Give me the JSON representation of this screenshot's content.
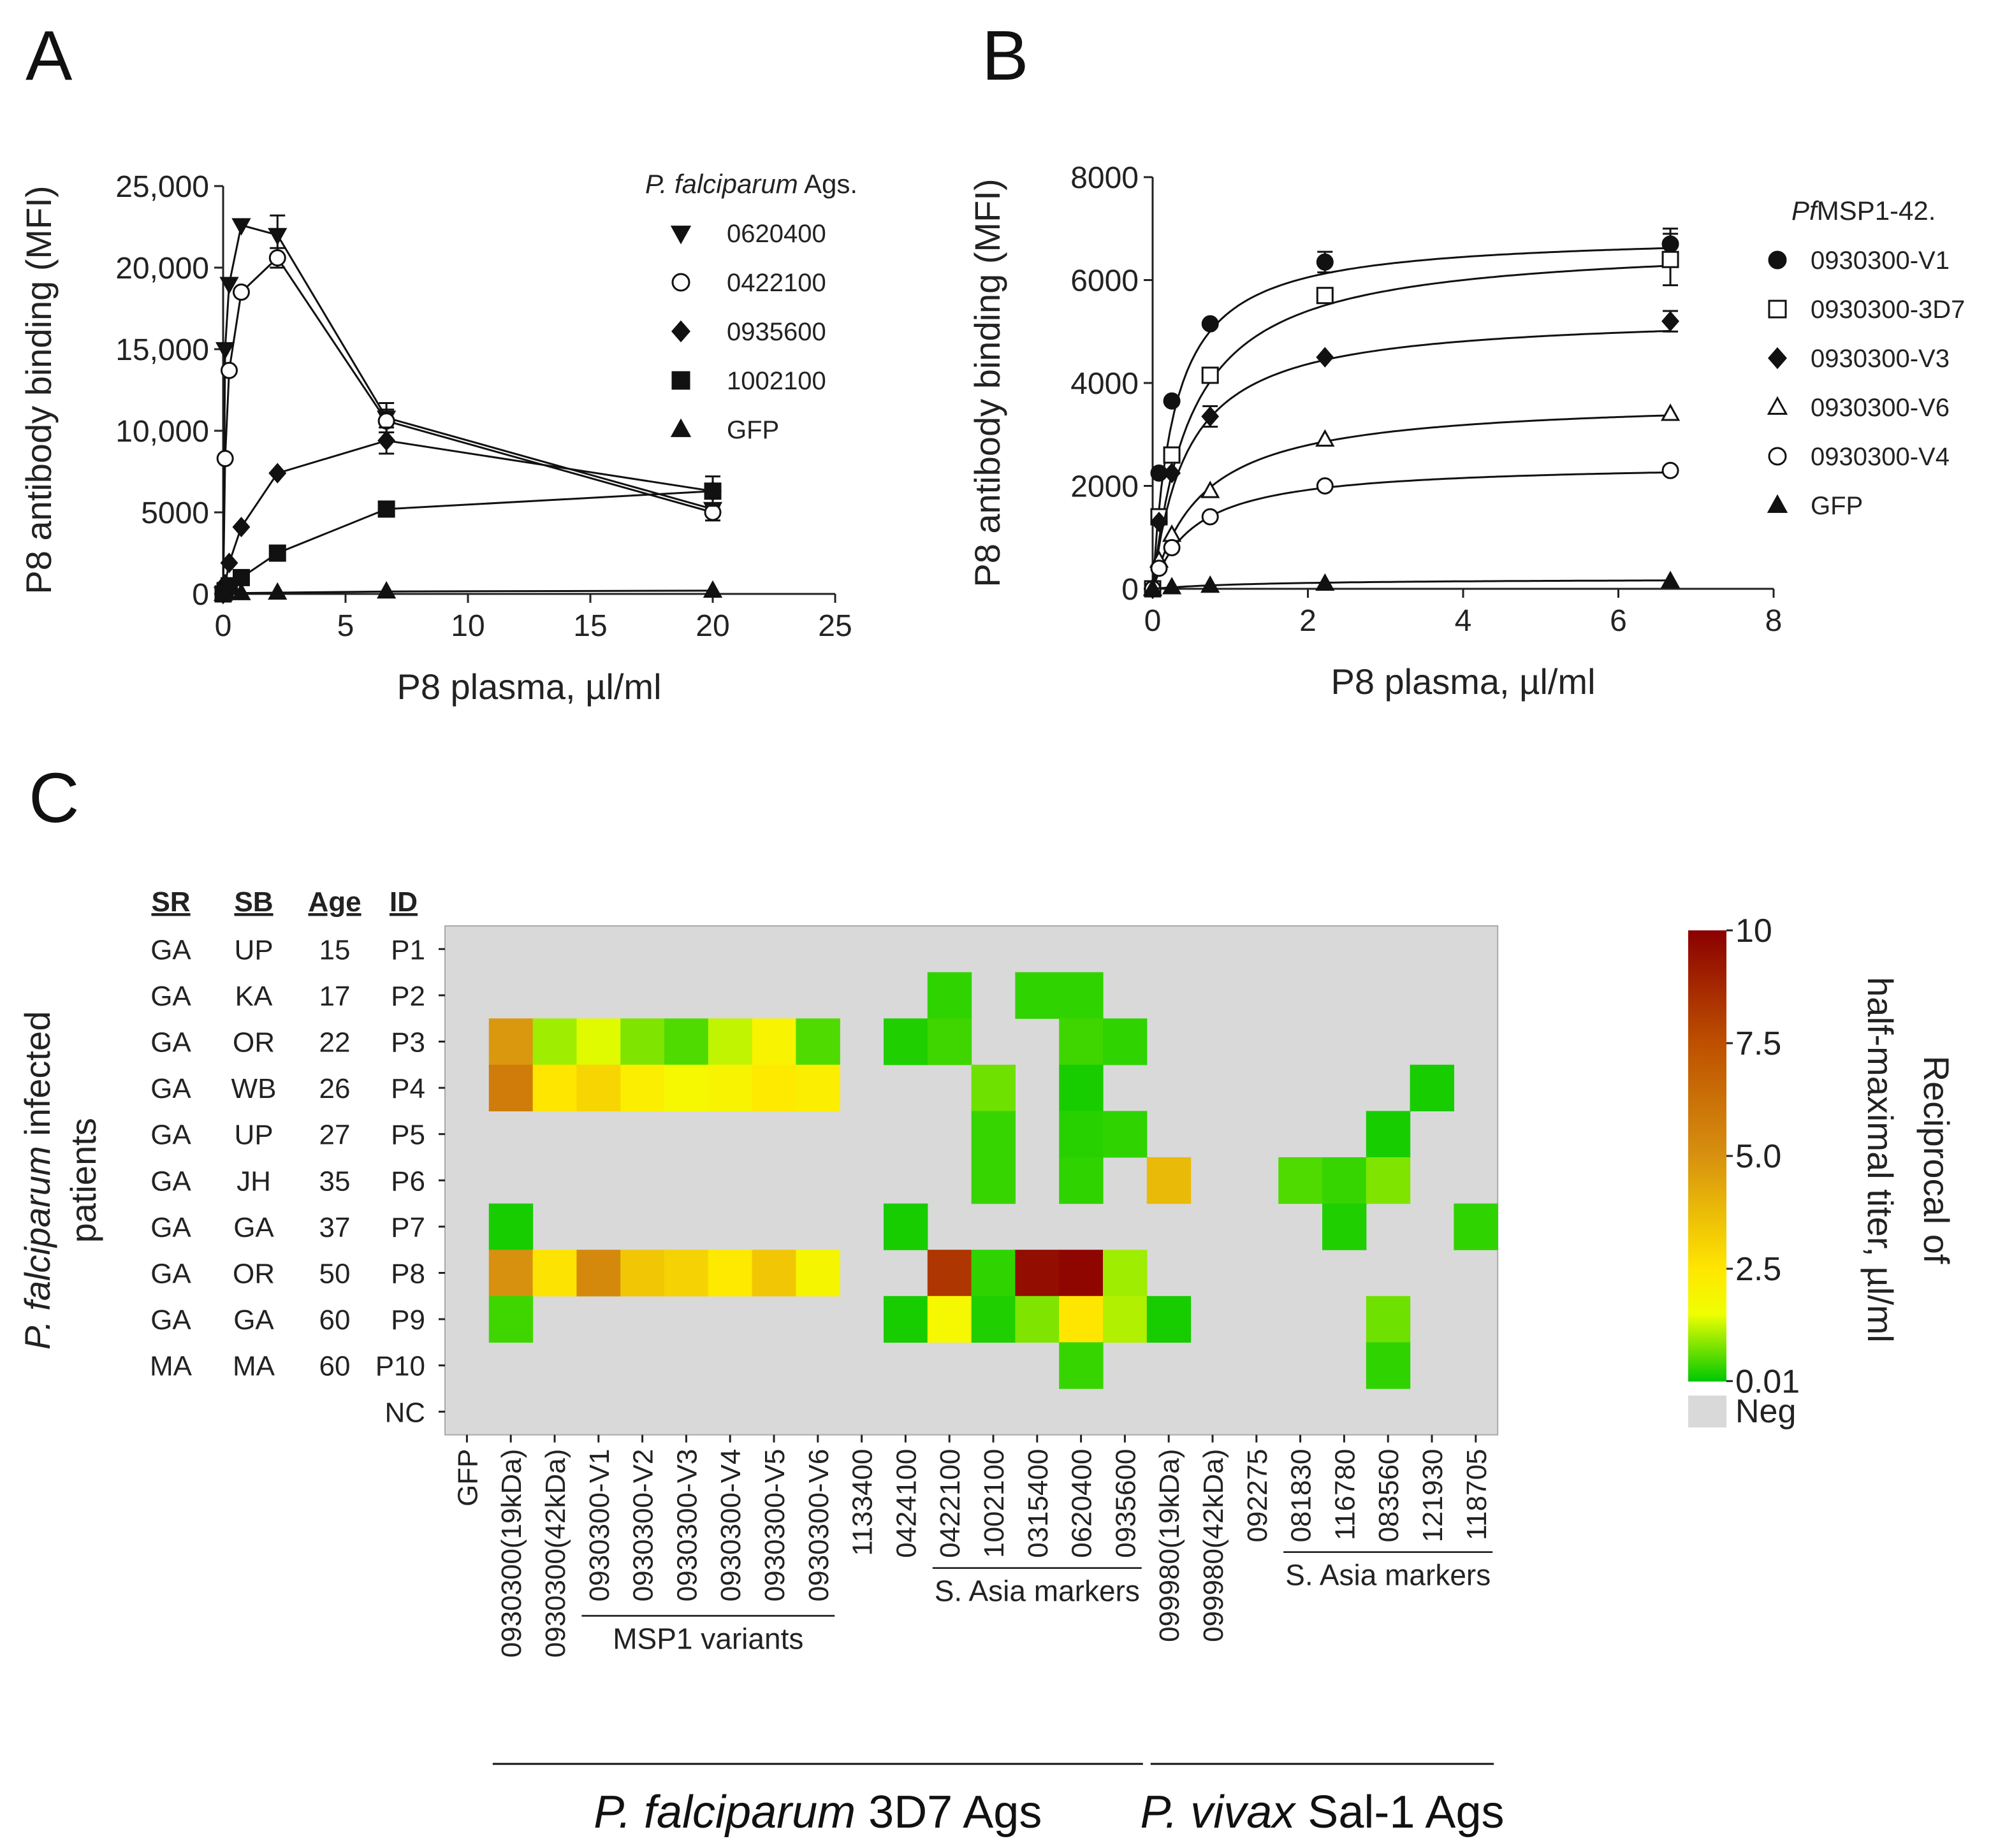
{
  "chart_data": [
    {
      "type": "line",
      "panel": "A",
      "title": "",
      "xlabel": "P8 plasma, µl/ml",
      "ylabel": "P8 antibody binding (MFI)",
      "xlim": [
        0,
        25
      ],
      "ylim": [
        0,
        25000
      ],
      "xticks": [
        0,
        5,
        10,
        15,
        20,
        25
      ],
      "yticks": [
        0,
        5000,
        10000,
        15000,
        20000,
        25000
      ],
      "xtick_labels": [
        "0",
        "5",
        "10",
        "15",
        "20",
        "25"
      ],
      "ytick_labels": [
        "0",
        "5000",
        "10,000",
        "15,000",
        "20,000",
        "25,000"
      ],
      "legend_title": "P. falciparum Ags.",
      "legend_title_italic": "P. falciparum",
      "legend_title_rest": " Ags.",
      "series": [
        {
          "name": "0620400",
          "marker": "triangle-down",
          "filled": true,
          "x": [
            0,
            0.082,
            0.247,
            0.741,
            2.22,
            6.67,
            20
          ],
          "y": [
            0,
            15000,
            19000,
            22600,
            22000,
            10800,
            5200
          ],
          "err": [
            0,
            0,
            0,
            0,
            1200,
            900,
            0
          ]
        },
        {
          "name": "0422100",
          "marker": "circle",
          "filled": false,
          "x": [
            0,
            0.082,
            0.247,
            0.741,
            2.22,
            6.67,
            20
          ],
          "y": [
            0,
            8300,
            13700,
            18500,
            20600,
            10600,
            5000
          ],
          "err": [
            0,
            0,
            0,
            0,
            600,
            700,
            500
          ]
        },
        {
          "name": "0935600",
          "marker": "diamond",
          "filled": true,
          "x": [
            0,
            0.082,
            0.247,
            0.741,
            2.22,
            6.67,
            20
          ],
          "y": [
            0,
            600,
            1900,
            4100,
            7400,
            9400,
            6300
          ],
          "err": [
            0,
            0,
            0,
            0,
            0,
            800,
            0
          ]
        },
        {
          "name": "1002100",
          "marker": "square",
          "filled": true,
          "x": [
            0,
            0.082,
            0.247,
            0.741,
            2.22,
            6.67,
            20
          ],
          "y": [
            0,
            200,
            500,
            1000,
            2500,
            5200,
            6300
          ],
          "err": [
            0,
            0,
            0,
            0,
            0,
            0,
            900
          ]
        },
        {
          "name": "GFP",
          "marker": "triangle-up",
          "filled": true,
          "x": [
            0,
            0.741,
            2.22,
            6.67,
            20
          ],
          "y": [
            0,
            50,
            80,
            150,
            200
          ],
          "err": [
            0,
            0,
            0,
            0,
            0
          ]
        }
      ]
    },
    {
      "type": "line",
      "panel": "B",
      "title": "",
      "xlabel": "P8 plasma, µl/ml",
      "ylabel": "P8 antibody binding (MFI)",
      "xlim": [
        0,
        8
      ],
      "ylim": [
        0,
        8000
      ],
      "xticks": [
        0,
        2,
        4,
        6,
        8
      ],
      "yticks": [
        0,
        2000,
        4000,
        6000,
        8000
      ],
      "xtick_labels": [
        "0",
        "2",
        "4",
        "6",
        "8"
      ],
      "ytick_labels": [
        "0",
        "2000",
        "4000",
        "6000",
        "8000"
      ],
      "legend_title": "PfMSP1-42.",
      "legend_title_italic": "Pf",
      "legend_title_rest": "MSP1-42.",
      "fit": "saturation",
      "series": [
        {
          "name": "0930300-V1",
          "marker": "circle",
          "filled": true,
          "bmax": 6900,
          "kd": 0.28,
          "x": [
            0,
            0.082,
            0.247,
            0.741,
            2.22,
            6.67
          ],
          "y": [
            0,
            2250,
            3650,
            5150,
            6350,
            6700
          ],
          "err": [
            0,
            0,
            0,
            0,
            200,
            300
          ]
        },
        {
          "name": "0930300-3D7",
          "marker": "square",
          "filled": false,
          "bmax": 6750,
          "kd": 0.5,
          "x": [
            0,
            0.082,
            0.247,
            0.741,
            2.22,
            6.67
          ],
          "y": [
            0,
            1400,
            2600,
            4150,
            5700,
            6400
          ],
          "err": [
            0,
            0,
            0,
            0,
            0,
            500
          ]
        },
        {
          "name": "0930300-V3",
          "marker": "diamond",
          "filled": true,
          "bmax": 5350,
          "kd": 0.45,
          "x": [
            0,
            0.082,
            0.247,
            0.741,
            2.22,
            6.67
          ],
          "y": [
            0,
            1300,
            2250,
            3350,
            4500,
            5200
          ],
          "err": [
            0,
            0,
            0,
            200,
            0,
            200
          ]
        },
        {
          "name": "0930300-V6",
          "marker": "triangle-up",
          "filled": false,
          "bmax": 3700,
          "kd": 0.65,
          "x": [
            0,
            0.082,
            0.247,
            0.741,
            2.22,
            6.67
          ],
          "y": [
            0,
            550,
            1050,
            1900,
            2900,
            3400
          ],
          "err": [
            0,
            0,
            0,
            0,
            0,
            0
          ]
        },
        {
          "name": "0930300-V4",
          "marker": "circle",
          "filled": false,
          "bmax": 2450,
          "kd": 0.55,
          "x": [
            0,
            0.082,
            0.247,
            0.741,
            2.22,
            6.67
          ],
          "y": [
            0,
            400,
            800,
            1400,
            2000,
            2300
          ],
          "err": [
            0,
            0,
            0,
            0,
            0,
            0
          ]
        },
        {
          "name": "GFP",
          "marker": "triangle-up",
          "filled": true,
          "bmax": 200,
          "kd": 1.5,
          "x": [
            0,
            0.247,
            0.741,
            2.22,
            6.67
          ],
          "y": [
            0,
            30,
            60,
            100,
            150
          ],
          "err": [
            0,
            0,
            0,
            0,
            0
          ]
        }
      ]
    },
    {
      "type": "heatmap",
      "panel": "C",
      "title": "",
      "ylabel": "P. falciparum infected patients",
      "ylabel_italic": "P. falciparum",
      "ylabel_rest": " infected",
      "ylabel_line2": "patients",
      "colorbar_label_line1": "Reciprocal of",
      "colorbar_label_line2": "half-maximal titer, µl/ml",
      "colorbar_ticks": [
        10,
        7.5,
        5.0,
        2.5,
        0.01
      ],
      "colorbar_tick_labels": [
        "10",
        "7.5",
        "5.0",
        "2.5",
        "0.01"
      ],
      "neg_label": "Neg",
      "meta_headers": [
        "SR",
        "SB",
        "Age",
        "ID"
      ],
      "rows": [
        {
          "sr": "GA",
          "sb": "UP",
          "age": "15",
          "id": "P1"
        },
        {
          "sr": "GA",
          "sb": "KA",
          "age": "17",
          "id": "P2"
        },
        {
          "sr": "GA",
          "sb": "OR",
          "age": "22",
          "id": "P3"
        },
        {
          "sr": "GA",
          "sb": "WB",
          "age": "26",
          "id": "P4"
        },
        {
          "sr": "GA",
          "sb": "UP",
          "age": "27",
          "id": "P5"
        },
        {
          "sr": "GA",
          "sb": "JH",
          "age": "35",
          "id": "P6"
        },
        {
          "sr": "GA",
          "sb": "GA",
          "age": "37",
          "id": "P7"
        },
        {
          "sr": "GA",
          "sb": "OR",
          "age": "50",
          "id": "P8"
        },
        {
          "sr": "GA",
          "sb": "GA",
          "age": "60",
          "id": "P9"
        },
        {
          "sr": "MA",
          "sb": "MA",
          "age": "60",
          "id": "P10"
        },
        {
          "sr": "",
          "sb": "",
          "age": "",
          "id": "NC"
        }
      ],
      "columns": [
        "GFP",
        "0930300(19kDa)",
        "0930300(42kDa)",
        "0930300-V1",
        "0930300-V2",
        "0930300-V3",
        "0930300-V4",
        "0930300-V5",
        "0930300-V6",
        "1133400",
        "0424100",
        "0422100",
        "1002100",
        "0315400",
        "0620400",
        "0935600",
        "099980(19kDa)",
        "099980(42kDa)",
        "092275",
        "081830",
        "116780",
        "083560",
        "121930",
        "118705"
      ],
      "groups": [
        {
          "label": "MSP1 variants",
          "from": 3,
          "to": 8
        },
        {
          "label": "S. Asia markers",
          "from": 11,
          "to": 15
        },
        {
          "label": "S. Asia markers",
          "from": 19,
          "to": 23
        }
      ],
      "super_groups": [
        {
          "label_italic": "P. falciparum",
          "label_rest": " 3D7 Ags",
          "from": 1,
          "to": 15
        },
        {
          "label_italic": "P. vivax",
          "label_rest": " Sal-1 Ags",
          "from": 16,
          "to": 23
        }
      ],
      "values": [
        [
          null,
          null,
          null,
          null,
          null,
          null,
          null,
          null,
          null,
          null,
          null,
          null,
          null,
          null,
          null,
          null,
          null,
          null,
          null,
          null,
          null,
          null,
          null,
          null
        ],
        [
          null,
          null,
          null,
          null,
          null,
          null,
          null,
          null,
          null,
          null,
          null,
          0.3,
          null,
          0.3,
          0.3,
          null,
          null,
          null,
          null,
          null,
          null,
          null,
          null,
          null
        ],
        [
          null,
          4.8,
          1.0,
          1.4,
          0.8,
          0.5,
          1.2,
          2.0,
          0.5,
          null,
          0.2,
          0.4,
          null,
          null,
          0.4,
          0.3,
          null,
          null,
          null,
          null,
          null,
          null,
          null,
          null
        ],
        [
          null,
          5.8,
          2.5,
          3.0,
          2.2,
          1.8,
          2.0,
          2.4,
          2.2,
          null,
          null,
          null,
          0.7,
          null,
          0.15,
          null,
          null,
          null,
          null,
          null,
          null,
          null,
          0.15,
          null
        ],
        [
          null,
          null,
          null,
          null,
          null,
          null,
          null,
          null,
          null,
          null,
          null,
          null,
          0.35,
          null,
          0.25,
          0.3,
          null,
          null,
          null,
          null,
          null,
          0.15,
          null,
          null
        ],
        [
          null,
          null,
          null,
          null,
          null,
          null,
          null,
          null,
          null,
          null,
          null,
          null,
          0.35,
          null,
          0.3,
          null,
          3.8,
          null,
          null,
          0.5,
          0.35,
          0.8,
          null,
          null
        ],
        [
          null,
          0.15,
          null,
          null,
          null,
          null,
          null,
          null,
          null,
          null,
          0.15,
          null,
          null,
          null,
          null,
          null,
          null,
          null,
          null,
          null,
          0.2,
          null,
          null,
          0.3
        ],
        [
          null,
          5.0,
          2.6,
          5.3,
          3.4,
          3.1,
          2.4,
          3.4,
          1.9,
          null,
          null,
          8.3,
          0.3,
          9.6,
          9.8,
          1.0,
          null,
          null,
          null,
          null,
          null,
          null,
          null,
          null
        ],
        [
          null,
          0.4,
          null,
          null,
          null,
          null,
          null,
          null,
          null,
          null,
          0.15,
          1.8,
          0.2,
          0.8,
          2.5,
          1.1,
          0.15,
          null,
          null,
          null,
          null,
          0.7,
          null,
          null
        ],
        [
          null,
          null,
          null,
          null,
          null,
          null,
          null,
          null,
          null,
          null,
          null,
          null,
          null,
          null,
          0.35,
          null,
          null,
          null,
          null,
          null,
          null,
          0.3,
          null,
          null
        ],
        [
          null,
          null,
          null,
          null,
          null,
          null,
          null,
          null,
          null,
          null,
          null,
          null,
          null,
          null,
          null,
          null,
          null,
          null,
          null,
          null,
          null,
          null,
          null,
          null
        ]
      ]
    }
  ],
  "colors": {
    "neg": "#d9d9d9",
    "line": "#111111",
    "low": "#00c800",
    "mid": "#ffff00",
    "midhigh": "#d4880a",
    "high": "#8b0000"
  }
}
